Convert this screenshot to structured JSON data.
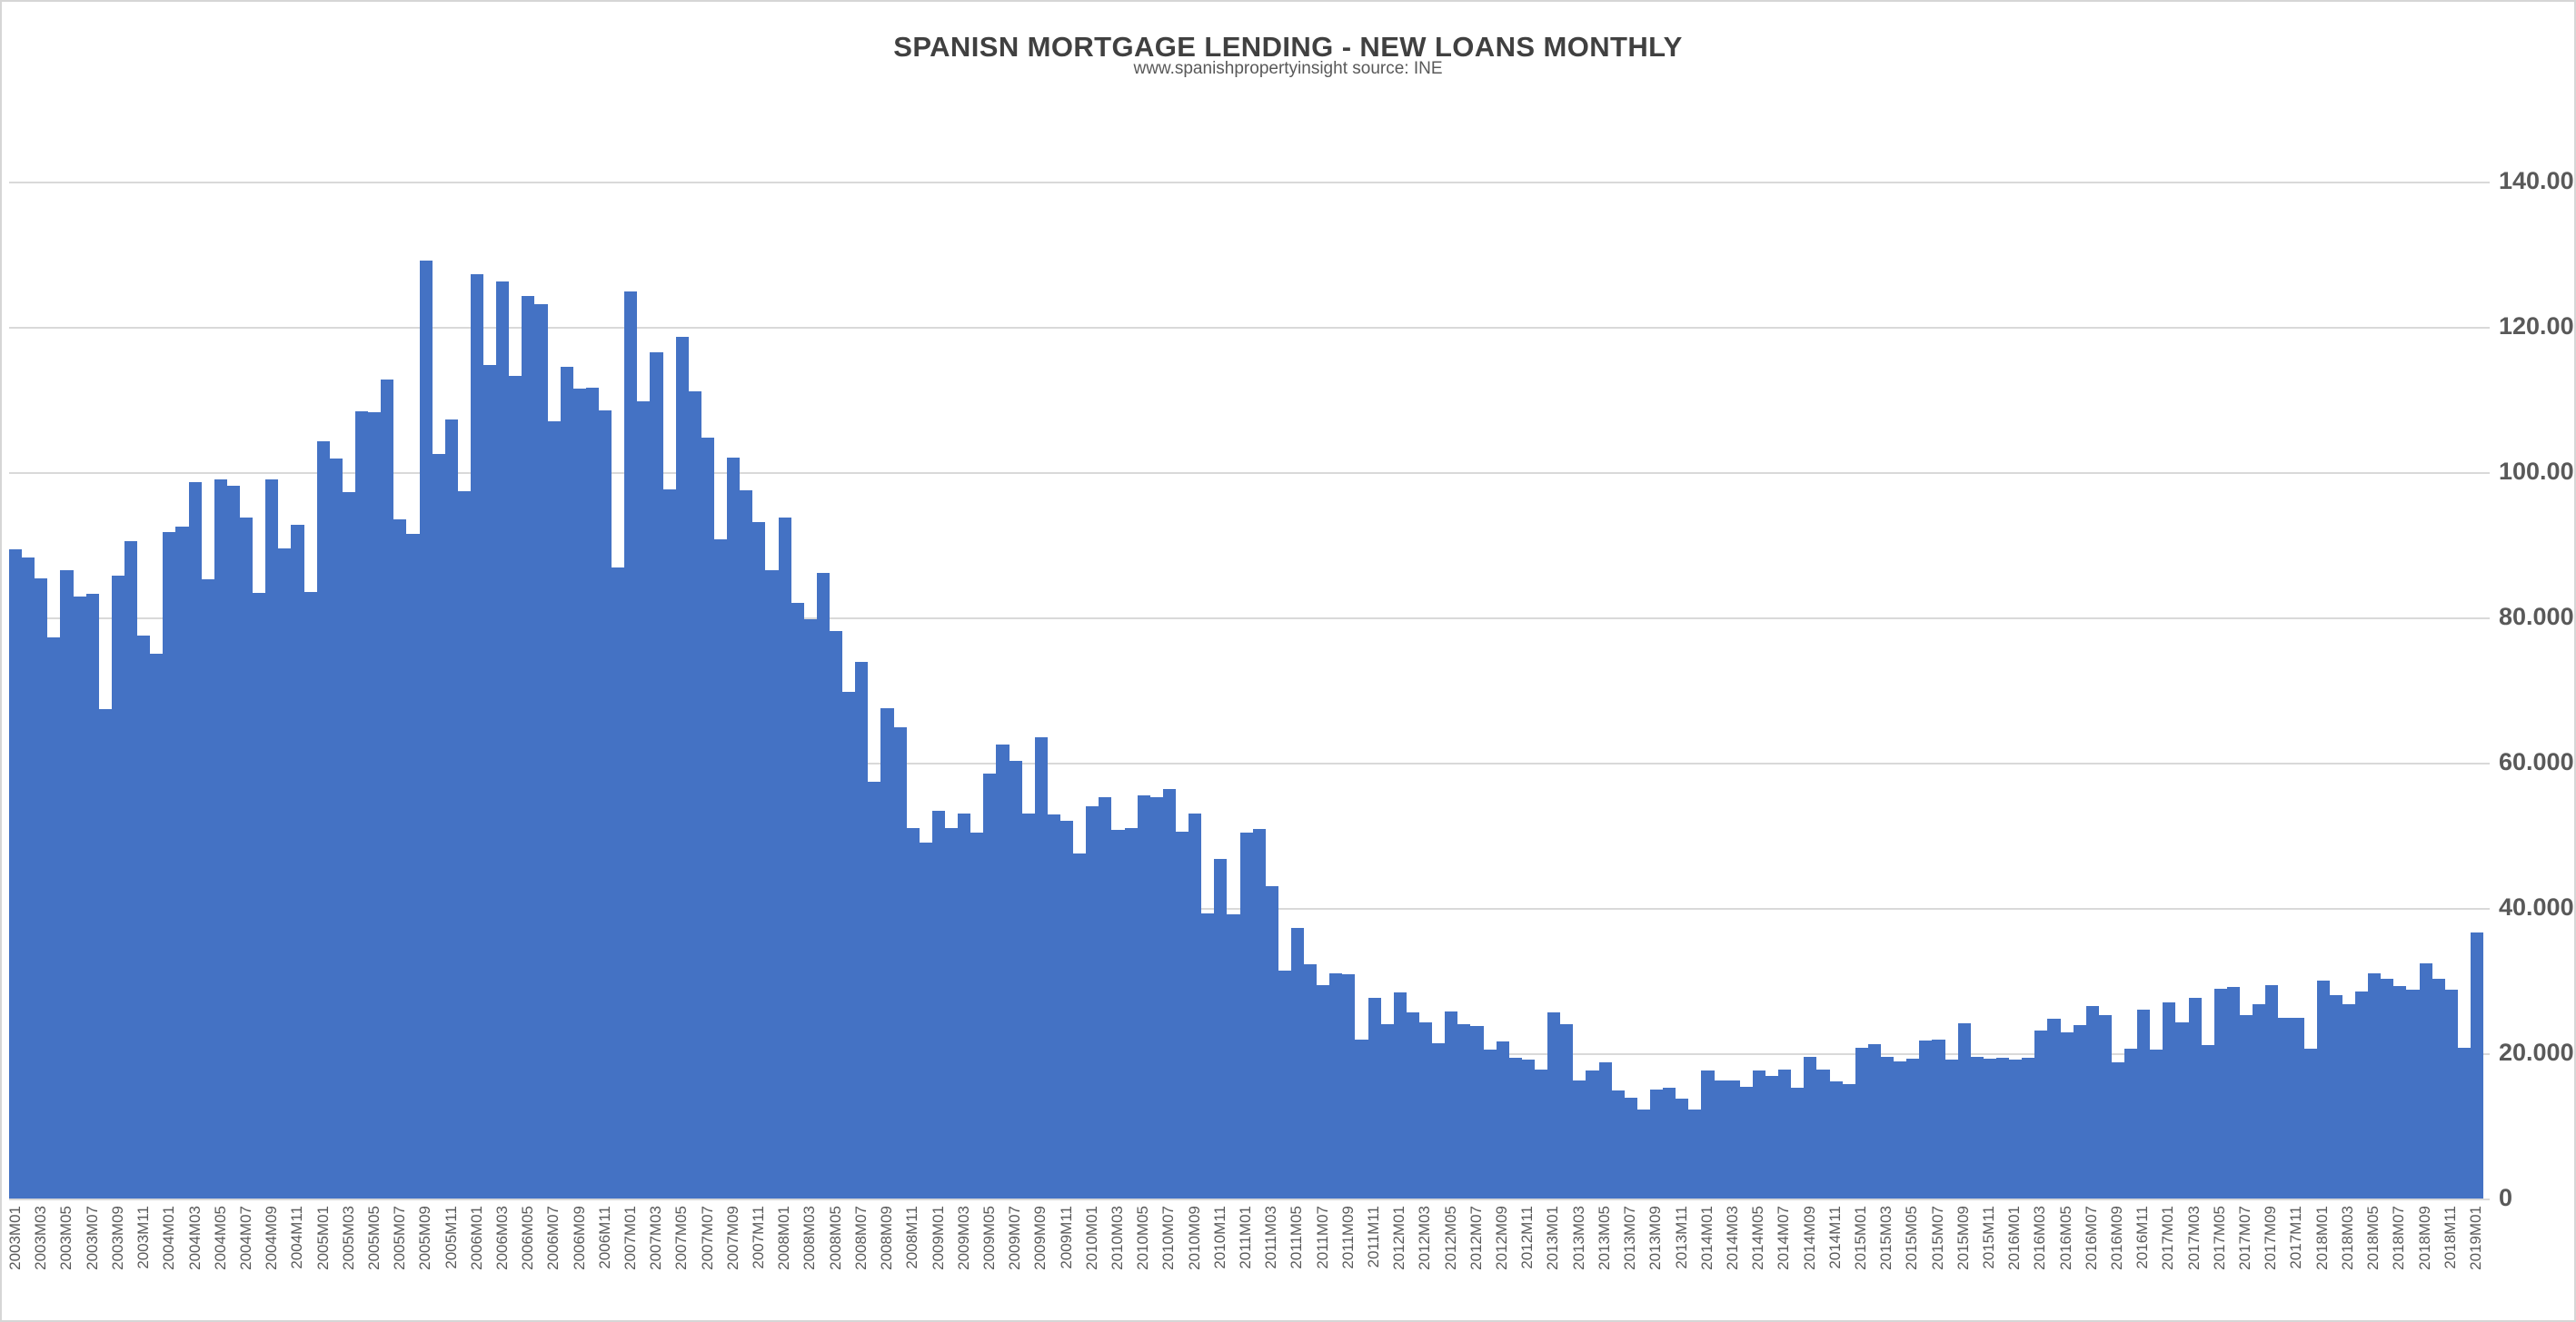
{
  "title": "SPANISN MORTGAGE LENDING - NEW LOANS MONTHLY",
  "subtitle": "www.spanishpropertyinsight source: INE",
  "colors": {
    "bar": "#4472C4",
    "gridline": "#D9D9D9",
    "axis_text": "#595959",
    "title_text": "#404040",
    "frame_border": "#D6D6D6"
  },
  "y_axis": {
    "side": "right",
    "tick_values": [
      0,
      20000,
      40000,
      60000,
      80000,
      100000,
      120000,
      140000
    ],
    "tick_labels": [
      "0",
      "20.000",
      "40.000",
      "60.000",
      "80.000",
      "100.000",
      "120.000",
      "140.000"
    ]
  },
  "x_axis": {
    "label_every_n": 2,
    "first_label": "2003M01",
    "last_label": "2019M01"
  },
  "chart_data": {
    "type": "bar",
    "title": "SPANISN MORTGAGE LENDING - NEW LOANS MONTHLY",
    "subtitle": "www.spanishpropertyinsight source: INE",
    "xlabel": "",
    "ylabel": "",
    "ylim": [
      0,
      140000
    ],
    "grid": true,
    "legend": false,
    "categories": [
      "2003M01",
      "2003M02",
      "2003M03",
      "2003M04",
      "2003M05",
      "2003M06",
      "2003M07",
      "2003M08",
      "2003M09",
      "2003M10",
      "2003M11",
      "2003M12",
      "2004M01",
      "2004M02",
      "2004M03",
      "2004M04",
      "2004M05",
      "2004M06",
      "2004M07",
      "2004M08",
      "2004M09",
      "2004M10",
      "2004M11",
      "2004M12",
      "2005M01",
      "2005M02",
      "2005M03",
      "2005M04",
      "2005M05",
      "2005M06",
      "2005M07",
      "2005M08",
      "2005M09",
      "2005M10",
      "2005M11",
      "2005M12",
      "2006M01",
      "2006M02",
      "2006M03",
      "2006M04",
      "2006M05",
      "2006M06",
      "2006M07",
      "2006M08",
      "2006M09",
      "2006M10",
      "2006M11",
      "2006M12",
      "2007M01",
      "2007M02",
      "2007M03",
      "2007M04",
      "2007M05",
      "2007M06",
      "2007M07",
      "2007M08",
      "2007M09",
      "2007M10",
      "2007M11",
      "2007M12",
      "2008M01",
      "2008M02",
      "2008M03",
      "2008M04",
      "2008M05",
      "2008M06",
      "2008M07",
      "2008M08",
      "2008M09",
      "2008M10",
      "2008M11",
      "2008M12",
      "2009M01",
      "2009M02",
      "2009M03",
      "2009M04",
      "2009M05",
      "2009M06",
      "2009M07",
      "2009M08",
      "2009M09",
      "2009M10",
      "2009M11",
      "2009M12",
      "2010M01",
      "2010M02",
      "2010M03",
      "2010M04",
      "2010M05",
      "2010M06",
      "2010M07",
      "2010M08",
      "2010M09",
      "2010M10",
      "2010M11",
      "2010M12",
      "2011M01",
      "2011M02",
      "2011M03",
      "2011M04",
      "2011M05",
      "2011M06",
      "2011M07",
      "2011M08",
      "2011M09",
      "2011M10",
      "2011M11",
      "2011M12",
      "2012M01",
      "2012M02",
      "2012M03",
      "2012M04",
      "2012M05",
      "2012M06",
      "2012M07",
      "2012M08",
      "2012M09",
      "2012M10",
      "2012M11",
      "2012M12",
      "2013M01",
      "2013M02",
      "2013M03",
      "2013M04",
      "2013M05",
      "2013M06",
      "2013M07",
      "2013M08",
      "2013M09",
      "2013M10",
      "2013M11",
      "2013M12",
      "2014M01",
      "2014M02",
      "2014M03",
      "2014M04",
      "2014M05",
      "2014M06",
      "2014M07",
      "2014M08",
      "2014M09",
      "2014M10",
      "2014M11",
      "2014M12",
      "2015M01",
      "2015M02",
      "2015M03",
      "2015M04",
      "2015M05",
      "2015M06",
      "2015M07",
      "2015M08",
      "2015M09",
      "2015M10",
      "2015M11",
      "2015M12",
      "2016M01",
      "2016M02",
      "2016M03",
      "2016M04",
      "2016M05",
      "2016M06",
      "2016M07",
      "2016M08",
      "2016M09",
      "2016M10",
      "2016M11",
      "2016M12",
      "2017M01",
      "2017M02",
      "2017M03",
      "2017M04",
      "2017M05",
      "2017M06",
      "2017M07",
      "2017M08",
      "2017M09",
      "2017M10",
      "2017M11",
      "2017M12",
      "2018M01",
      "2018M02",
      "2018M03",
      "2018M04",
      "2018M05",
      "2018M06",
      "2018M07",
      "2018M08",
      "2018M09",
      "2018M10",
      "2018M11",
      "2018M12",
      "2019M01"
    ],
    "values": [
      89400,
      88200,
      85400,
      77200,
      86500,
      82900,
      83200,
      67400,
      85800,
      90500,
      77500,
      75000,
      91800,
      92500,
      98600,
      85200,
      99000,
      98100,
      93700,
      83400,
      99000,
      89500,
      92700,
      83500,
      104200,
      101900,
      97200,
      108400,
      108200,
      112700,
      93500,
      91500,
      129100,
      102500,
      107300,
      97400,
      127200,
      114700,
      126200,
      113300,
      124200,
      123100,
      107000,
      114500,
      111500,
      111600,
      108500,
      86900,
      124900,
      109800,
      116500,
      97600,
      118600,
      111100,
      104700,
      90700,
      102000,
      97500,
      93100,
      86500,
      93800,
      82000,
      79700,
      86100,
      78100,
      69700,
      73900,
      57400,
      67500,
      64900,
      51000,
      49000,
      53400,
      51000,
      53000,
      50400,
      58500,
      62500,
      60200,
      53000,
      63500,
      52900,
      52000,
      47500,
      54000,
      55200,
      50800,
      51000,
      55500,
      55200,
      56400,
      50500,
      53000,
      39300,
      46700,
      39100,
      50400,
      50900,
      43000,
      31400,
      37300,
      32300,
      29400,
      31000,
      30900,
      21900,
      27600,
      24000,
      28400,
      25600,
      24300,
      21400,
      25800,
      24000,
      23700,
      20500,
      21600,
      19400,
      19100,
      17700,
      25600,
      24000,
      16200,
      17600,
      18700,
      14900,
      13900,
      12200,
      15000,
      15300,
      13700,
      12300,
      17600,
      16300,
      16200,
      15400,
      17600,
      16900,
      17700,
      15200,
      19500,
      17800,
      16100,
      15800,
      20800,
      21200,
      19500,
      18900,
      19300,
      21800,
      21900,
      19100,
      24100,
      19500,
      19200,
      19400,
      19100,
      19400,
      23100,
      24700,
      22900,
      23900,
      26500,
      25200,
      18700,
      20600,
      26000,
      20500,
      27000,
      24300,
      27600,
      21100,
      28900,
      29100,
      25300,
      26700,
      29400,
      24900,
      24900,
      20600,
      30000,
      28000,
      26700,
      28500,
      31000,
      30200,
      29300,
      28800,
      32400,
      30200,
      28700,
      20700,
      36600
    ]
  }
}
